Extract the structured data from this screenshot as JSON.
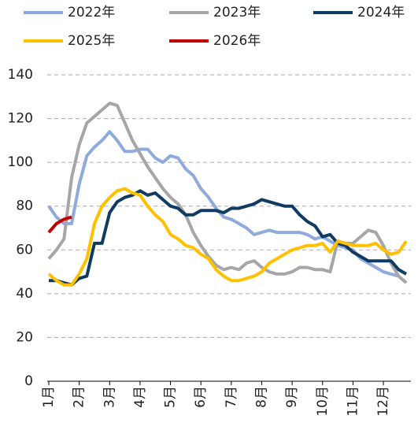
{
  "chart_data": {
    "type": "line",
    "categories": [
      "1月",
      null,
      null,
      null,
      "2月",
      null,
      null,
      null,
      "3月",
      null,
      null,
      null,
      "4月",
      null,
      null,
      null,
      "5月",
      null,
      null,
      null,
      "6月",
      null,
      null,
      null,
      "7月",
      null,
      null,
      null,
      "8月",
      null,
      null,
      null,
      "9月",
      null,
      null,
      null,
      "10月",
      null,
      null,
      null,
      "11月",
      null,
      null,
      null,
      "12月",
      null,
      null,
      null
    ],
    "series": [
      {
        "name": "2022年",
        "color": "#8faadc",
        "values": [
          80,
          75,
          72,
          72,
          90,
          103,
          107,
          110,
          114,
          110,
          105,
          105,
          106,
          106,
          102,
          100,
          103,
          102,
          97,
          94,
          88,
          84,
          79,
          75,
          74,
          72,
          70,
          67,
          68,
          69,
          68,
          68,
          68,
          68,
          67,
          65,
          66,
          64,
          62,
          61,
          60,
          56,
          54,
          52,
          50,
          49,
          48,
          45
        ]
      },
      {
        "name": "2023年",
        "color": "#a6a6a6",
        "values": [
          56,
          60,
          65,
          93,
          108,
          118,
          121,
          124,
          127,
          126,
          118,
          110,
          104,
          98,
          93,
          88,
          84,
          81,
          76,
          68,
          62,
          57,
          53,
          51,
          52,
          51,
          54,
          55,
          52,
          50,
          49,
          49,
          50,
          52,
          52,
          51,
          51,
          50,
          64,
          63,
          63,
          66,
          69,
          68,
          62,
          54,
          48,
          45
        ]
      },
      {
        "name": "2024年",
        "color": "#0f3b63",
        "values": [
          46,
          46,
          45,
          44,
          47,
          48,
          63,
          63,
          77,
          82,
          84,
          85,
          87,
          85,
          86,
          83,
          80,
          79,
          76,
          76,
          78,
          78,
          78,
          77,
          79,
          79,
          80,
          81,
          83,
          82,
          81,
          80,
          80,
          76,
          73,
          71,
          66,
          67,
          63,
          62,
          59,
          57,
          55,
          55,
          55,
          55,
          51,
          49
        ]
      },
      {
        "name": "2025年",
        "color": "#ffc000",
        "values": [
          49,
          46,
          44,
          44,
          49,
          56,
          72,
          80,
          84,
          87,
          88,
          86,
          85,
          80,
          76,
          73,
          67,
          65,
          62,
          61,
          58,
          56,
          51,
          48,
          46,
          46,
          47,
          48,
          50,
          54,
          56,
          58,
          60,
          61,
          62,
          62,
          63,
          59,
          64,
          63,
          62,
          62,
          62,
          63,
          60,
          58,
          59,
          64
        ]
      },
      {
        "name": "2026年",
        "color": "#c00000",
        "values": [
          68,
          72,
          74,
          75,
          null,
          null,
          null,
          null,
          null,
          null,
          null,
          null,
          null,
          null,
          null,
          null,
          null,
          null,
          null,
          null,
          null,
          null,
          null,
          null,
          null,
          null,
          null,
          null,
          null,
          null,
          null,
          null,
          null,
          null,
          null,
          null,
          null,
          null,
          null,
          null,
          null,
          null,
          null,
          null,
          null,
          null,
          null,
          null
        ]
      }
    ],
    "ylim": [
      0,
      140
    ],
    "yticks": [
      0,
      20,
      40,
      60,
      80,
      100,
      120,
      140
    ],
    "grid": true
  }
}
